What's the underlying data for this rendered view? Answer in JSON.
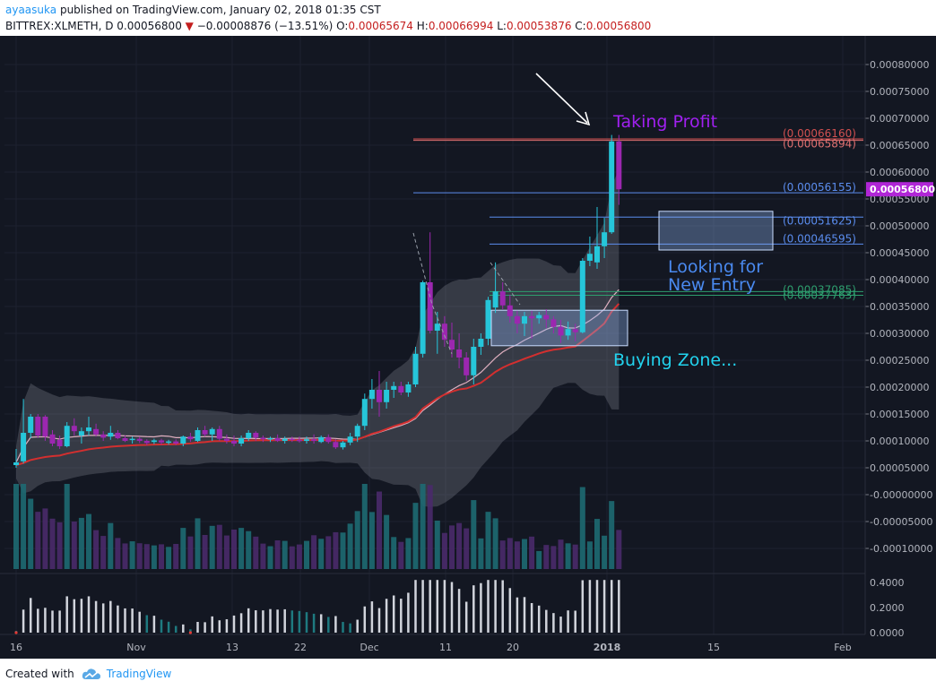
{
  "header": {
    "author": "ayaasuka",
    "published_text": "published on TradingView.com, January 02, 2018 01:35 CST",
    "symbol": "BITTREX:XLMETH, D",
    "last": "0.00056800",
    "change": "−0.00008876 (−13.51%)",
    "o_label": "O:",
    "o_value": "0.00065674",
    "h_label": "H:",
    "h_value": "0.00066994",
    "l_label": "L:",
    "l_value": "0.00053876",
    "c_label": "C:",
    "c_value": "0.00056800"
  },
  "footer": {
    "created_with": "Created with",
    "brand": "TradingView"
  },
  "colors": {
    "background": "#131722",
    "up": "#26c6da",
    "down": "#9c27b0",
    "ema": "#d32f2f",
    "sma": "#e0b0c0",
    "band": "#787b86",
    "fib": "#5b8def",
    "fib_top": "#d05050",
    "fib_mid": "#2e9e6e",
    "annot_purple": "#a020f0",
    "annot_cyan": "#22d3ee",
    "annot_blue": "#4a8af0"
  },
  "chart_data": {
    "type": "candlestick",
    "y_axis_ticks": [
      "0.00080000",
      "0.00075000",
      "0.00070000",
      "0.00065000",
      "0.00060000",
      "0.00055000",
      "0.00050000",
      "0.00045000",
      "0.00040000",
      "0.00035000",
      "0.00030000",
      "0.00025000",
      "0.00020000",
      "0.00015000",
      "0.00010000",
      "0.00005000",
      "-0.00000000",
      "-0.00005000",
      "-0.00010000"
    ],
    "osc_ticks": [
      "0.4000",
      "0.2000",
      "0.0000"
    ],
    "x_ticks": [
      "16",
      "Nov",
      "13",
      "22",
      "Dec",
      "11",
      "20",
      "2018",
      "15",
      "Feb"
    ],
    "price_label": "0.00056800",
    "fib_levels": [
      {
        "label": "(0.00066160)",
        "value": 0.0006616,
        "color": "#d05050"
      },
      {
        "label": "(0.00065894)",
        "value": 0.00065894,
        "color": "#e07070"
      },
      {
        "label": "(0.00056155)",
        "value": 0.00056155,
        "color": "#5b8def"
      },
      {
        "label": "(0.00051625)",
        "value": 0.00051625,
        "color": "#5b8def"
      },
      {
        "label": "(0.00046595)",
        "value": 0.00046595,
        "color": "#5b8def"
      },
      {
        "label": "(0.00037763)",
        "value": 0.00037763,
        "color": "#2e9e6e"
      },
      {
        "label": "(0.00037085)",
        "value": 0.00037085,
        "color": "#2e9e6e"
      }
    ],
    "annotations": [
      {
        "text": "Taking Profit",
        "color": "#a020f0"
      },
      {
        "text": "Looking for",
        "color": "#4a8af0"
      },
      {
        "text": "New Entry",
        "color": "#4a8af0"
      },
      {
        "text": "Buying Zone...",
        "color": "#22d3ee"
      }
    ],
    "boxes": [
      {
        "name": "buying-zone-box",
        "y0": 0.000277,
        "y1": 0.000343
      },
      {
        "name": "entry-zone-box",
        "y0": 0.000455,
        "y1": 0.000527
      }
    ],
    "candles": [
      {
        "o": 5.5e-05,
        "h": 8.5e-05,
        "l": 5e-05,
        "c": 6e-05
      },
      {
        "o": 6.2e-05,
        "h": 0.000178,
        "l": 5.8e-05,
        "c": 0.000115
      },
      {
        "o": 0.000115,
        "h": 0.00015,
        "l": 0.000105,
        "c": 0.000145
      },
      {
        "o": 0.000145,
        "h": 0.00015,
        "l": 0.000105,
        "c": 0.00011
      },
      {
        "o": 0.000145,
        "h": 0.000148,
        "l": 0.0001,
        "c": 0.000108
      },
      {
        "o": 0.000112,
        "h": 0.00012,
        "l": 9e-05,
        "c": 9.5e-05
      },
      {
        "o": 0.000102,
        "h": 0.00011,
        "l": 8.5e-05,
        "c": 9e-05
      },
      {
        "o": 9e-05,
        "h": 0.000135,
        "l": 8.8e-05,
        "c": 0.000128
      },
      {
        "o": 0.000128,
        "h": 0.000142,
        "l": 0.00011,
        "c": 0.000118
      },
      {
        "o": 0.00011,
        "h": 0.000125,
        "l": 9.5e-05,
        "c": 0.000118
      },
      {
        "o": 0.000118,
        "h": 0.000145,
        "l": 0.00011,
        "c": 0.000125
      },
      {
        "o": 0.000122,
        "h": 0.000132,
        "l": 0.000108,
        "c": 0.000112
      },
      {
        "o": 0.000112,
        "h": 0.000118,
        "l": 0.0001,
        "c": 0.000106
      },
      {
        "o": 0.000108,
        "h": 0.000128,
        "l": 0.000102,
        "c": 0.000115
      },
      {
        "o": 0.000115,
        "h": 0.00012,
        "l": 0.000103,
        "c": 0.000105
      },
      {
        "o": 0.000105,
        "h": 0.00011,
        "l": 9.8e-05,
        "c": 0.0001
      },
      {
        "o": 0.000102,
        "h": 0.000108,
        "l": 9.5e-05,
        "c": 0.000104
      },
      {
        "o": 0.000104,
        "h": 0.000108,
        "l": 9.6e-05,
        "c": 0.0001
      },
      {
        "o": 0.0001,
        "h": 0.000103,
        "l": 9.2e-05,
        "c": 9.6e-05
      },
      {
        "o": 9.8e-05,
        "h": 0.000104,
        "l": 9.4e-05,
        "c": 0.000101
      },
      {
        "o": 0.000101,
        "h": 0.000104,
        "l": 9.3e-05,
        "c": 9.7e-05
      },
      {
        "o": 9.7e-05,
        "h": 0.000102,
        "l": 9.3e-05,
        "c": 9.9e-05
      },
      {
        "o": 9.9e-05,
        "h": 0.000103,
        "l": 9.2e-05,
        "c": 9.5e-05
      },
      {
        "o": 9.5e-05,
        "h": 0.00011,
        "l": 9e-05,
        "c": 0.000108
      },
      {
        "o": 0.000108,
        "h": 0.000115,
        "l": 9.8e-05,
        "c": 0.000103
      },
      {
        "o": 0.0001,
        "h": 0.000125,
        "l": 9.8e-05,
        "c": 0.00012
      },
      {
        "o": 0.00012,
        "h": 0.000128,
        "l": 0.000108,
        "c": 0.000112
      },
      {
        "o": 0.000112,
        "h": 0.000125,
        "l": 0.0001,
        "c": 0.000122
      },
      {
        "o": 0.000122,
        "h": 0.000128,
        "l": 0.0001,
        "c": 0.000104
      },
      {
        "o": 0.000104,
        "h": 0.000112,
        "l": 9.5e-05,
        "c": 0.0001
      },
      {
        "o": 0.0001,
        "h": 0.00011,
        "l": 9e-05,
        "c": 9.5e-05
      },
      {
        "o": 9.5e-05,
        "h": 0.00011,
        "l": 9e-05,
        "c": 0.000105
      },
      {
        "o": 0.000105,
        "h": 0.00012,
        "l": 0.0001,
        "c": 0.000115
      },
      {
        "o": 0.000115,
        "h": 0.000118,
        "l": 0.0001,
        "c": 0.000106
      },
      {
        "o": 0.000106,
        "h": 0.00011,
        "l": 9.8e-05,
        "c": 0.000103
      },
      {
        "o": 0.000103,
        "h": 0.000108,
        "l": 9.8e-05,
        "c": 0.000105
      },
      {
        "o": 0.000105,
        "h": 0.000112,
        "l": 9.8e-05,
        "c": 0.0001
      },
      {
        "o": 0.0001,
        "h": 0.000108,
        "l": 9.5e-05,
        "c": 0.000104
      },
      {
        "o": 0.000104,
        "h": 0.000108,
        "l": 9.8e-05,
        "c": 0.000102
      },
      {
        "o": 0.000102,
        "h": 0.000108,
        "l": 9.7e-05,
        "c": 0.0001
      },
      {
        "o": 0.0001,
        "h": 0.000108,
        "l": 9.5e-05,
        "c": 0.000103
      },
      {
        "o": 0.000103,
        "h": 0.000112,
        "l": 9.5e-05,
        "c": 0.0001
      },
      {
        "o": 9.8e-05,
        "h": 0.00011,
        "l": 9.6e-05,
        "c": 0.000107
      },
      {
        "o": 0.000107,
        "h": 0.000112,
        "l": 9.5e-05,
        "c": 9.8e-05
      },
      {
        "o": 9.8e-05,
        "h": 0.000103,
        "l": 8.5e-05,
        "c": 8.8e-05
      },
      {
        "o": 8.8e-05,
        "h": 0.0001,
        "l": 8.4e-05,
        "c": 9.7e-05
      },
      {
        "o": 9.7e-05,
        "h": 0.000115,
        "l": 9.2e-05,
        "c": 0.000108
      },
      {
        "o": 0.000108,
        "h": 0.000132,
        "l": 9.8e-05,
        "c": 0.000128
      },
      {
        "o": 0.000128,
        "h": 0.000188,
        "l": 0.00012,
        "c": 0.000178
      },
      {
        "o": 0.000178,
        "h": 0.000215,
        "l": 0.00016,
        "c": 0.000195
      },
      {
        "o": 0.000195,
        "h": 0.00023,
        "l": 0.000145,
        "c": 0.000172
      },
      {
        "o": 0.000172,
        "h": 0.00021,
        "l": 0.00016,
        "c": 0.000195
      },
      {
        "o": 0.000195,
        "h": 0.00021,
        "l": 0.00018,
        "c": 0.000202
      },
      {
        "o": 0.000202,
        "h": 0.00021,
        "l": 0.000185,
        "c": 0.00019
      },
      {
        "o": 0.00019,
        "h": 0.00021,
        "l": 0.000182,
        "c": 0.000205
      },
      {
        "o": 0.000205,
        "h": 0.000275,
        "l": 0.0002,
        "c": 0.000262
      },
      {
        "o": 0.000262,
        "h": 0.000398,
        "l": 0.000255,
        "c": 0.000395
      },
      {
        "o": 0.000395,
        "h": 0.000488,
        "l": 0.0003,
        "c": 0.000305
      },
      {
        "o": 0.000305,
        "h": 0.00034,
        "l": 0.000262,
        "c": 0.000318
      },
      {
        "o": 0.000318,
        "h": 0.000332,
        "l": 0.000275,
        "c": 0.000288
      },
      {
        "o": 0.000288,
        "h": 0.00032,
        "l": 0.000255,
        "c": 0.00027
      },
      {
        "o": 0.00027,
        "h": 0.0003,
        "l": 0.000235,
        "c": 0.000255
      },
      {
        "o": 0.000255,
        "h": 0.000265,
        "l": 0.000212,
        "c": 0.000222
      },
      {
        "o": 0.000222,
        "h": 0.00029,
        "l": 0.000205,
        "c": 0.000275
      },
      {
        "o": 0.000275,
        "h": 0.0003,
        "l": 0.00026,
        "c": 0.00029
      },
      {
        "o": 0.00029,
        "h": 0.000368,
        "l": 0.000278,
        "c": 0.000362
      },
      {
        "o": 0.000348,
        "h": 0.000432,
        "l": 0.000338,
        "c": 0.000378
      },
      {
        "o": 0.000378,
        "h": 0.000395,
        "l": 0.000345,
        "c": 0.000352
      },
      {
        "o": 0.000352,
        "h": 0.000372,
        "l": 0.00032,
        "c": 0.000332
      },
      {
        "o": 0.000332,
        "h": 0.000342,
        "l": 0.0003,
        "c": 0.000318
      },
      {
        "o": 0.000318,
        "h": 0.00034,
        "l": 0.000295,
        "c": 0.000332
      },
      {
        "o": 0.000332,
        "h": 0.000342,
        "l": 0.00029,
        "c": 0.000328
      },
      {
        "o": 0.000328,
        "h": 0.00034,
        "l": 0.000318,
        "c": 0.000334
      },
      {
        "o": 0.000334,
        "h": 0.000345,
        "l": 0.00031,
        "c": 0.000326
      },
      {
        "o": 0.000326,
        "h": 0.000332,
        "l": 0.0003,
        "c": 0.000312
      },
      {
        "o": 0.000312,
        "h": 0.000325,
        "l": 0.000282,
        "c": 0.000296
      },
      {
        "o": 0.000296,
        "h": 0.000322,
        "l": 0.000288,
        "c": 0.000308
      },
      {
        "o": 0.000308,
        "h": 0.000318,
        "l": 0.000285,
        "c": 0.000302
      },
      {
        "o": 0.000302,
        "h": 0.00044,
        "l": 0.0003,
        "c": 0.000435
      },
      {
        "o": 0.000435,
        "h": 0.00048,
        "l": 0.000425,
        "c": 0.000448
      },
      {
        "o": 0.000432,
        "h": 0.000535,
        "l": 0.00042,
        "c": 0.000462
      },
      {
        "o": 0.000462,
        "h": 0.000515,
        "l": 0.00044,
        "c": 0.000488
      },
      {
        "o": 0.000488,
        "h": 0.000669,
        "l": 0.000485,
        "c": 0.000657
      },
      {
        "o": 0.000657,
        "h": 0.000669,
        "l": 0.000539,
        "c": 0.000568
      }
    ]
  }
}
